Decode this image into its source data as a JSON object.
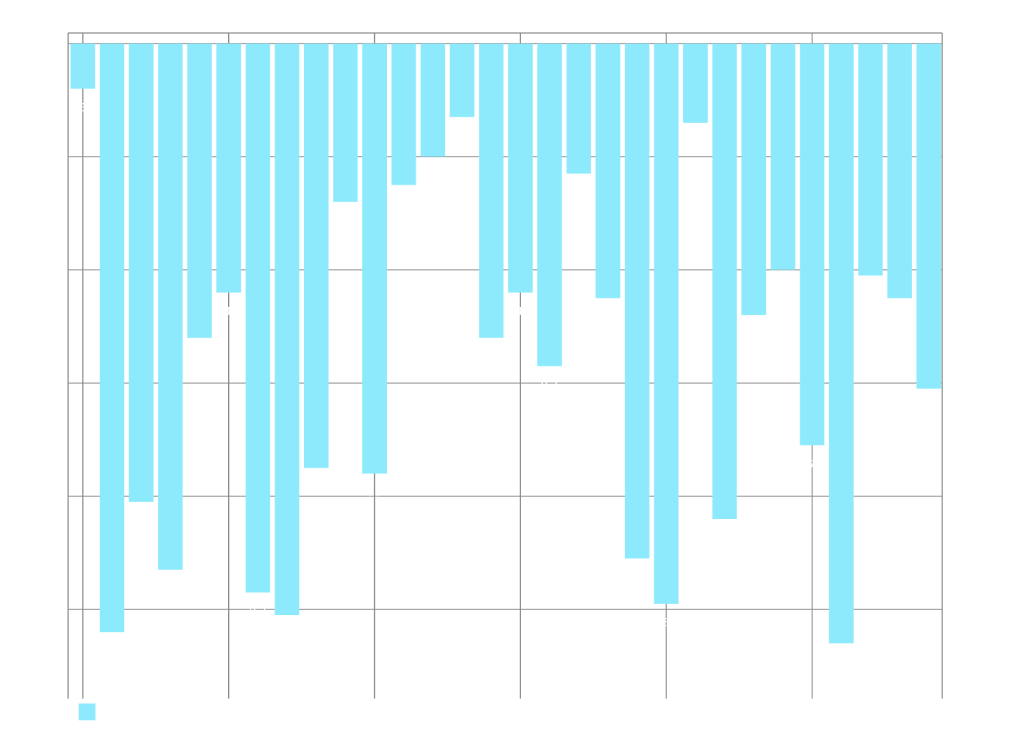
{
  "chart_data": {
    "type": "bar",
    "orientation": "vertical",
    "y_axis_inverted": true,
    "grid": true,
    "legend_placement": "bottom-left",
    "title": "",
    "xlabel": "",
    "ylabel": "",
    "colors": {
      "bar": "#8deafc",
      "grid": "#888888",
      "background": "#ffffff",
      "label": "#ffffff"
    },
    "x_range": [
      0,
      30
    ],
    "y_range": [
      0,
      5.8
    ],
    "x_ticks": [
      0,
      5,
      10,
      15,
      20,
      25
    ],
    "y_ticks": [
      0,
      1,
      2,
      3,
      4,
      5
    ],
    "values": [
      0.4,
      5.2,
      4.05,
      4.65,
      2.6,
      2.2,
      4.85,
      5.05,
      3.75,
      1.4,
      3.8,
      1.25,
      1.0,
      0.65,
      2.6,
      2.2,
      2.85,
      1.15,
      2.25,
      4.55,
      4.95,
      0.7,
      4.2,
      2.4,
      2.0,
      3.55,
      5.3,
      2.05,
      2.25,
      3.05
    ],
    "series": [
      {
        "name": "",
        "color": "#8deafc"
      }
    ],
    "data_labels": [
      {
        "index": 0,
        "text": "3"
      },
      {
        "index": 5,
        "text": "1"
      },
      {
        "index": 6,
        "text": "0.7"
      },
      {
        "index": 10,
        "text": "75"
      },
      {
        "index": 15,
        "text": "1"
      },
      {
        "index": 16,
        "text": "0.7"
      },
      {
        "index": 20,
        "text": "3"
      },
      {
        "index": 25,
        "text": "7"
      }
    ]
  }
}
